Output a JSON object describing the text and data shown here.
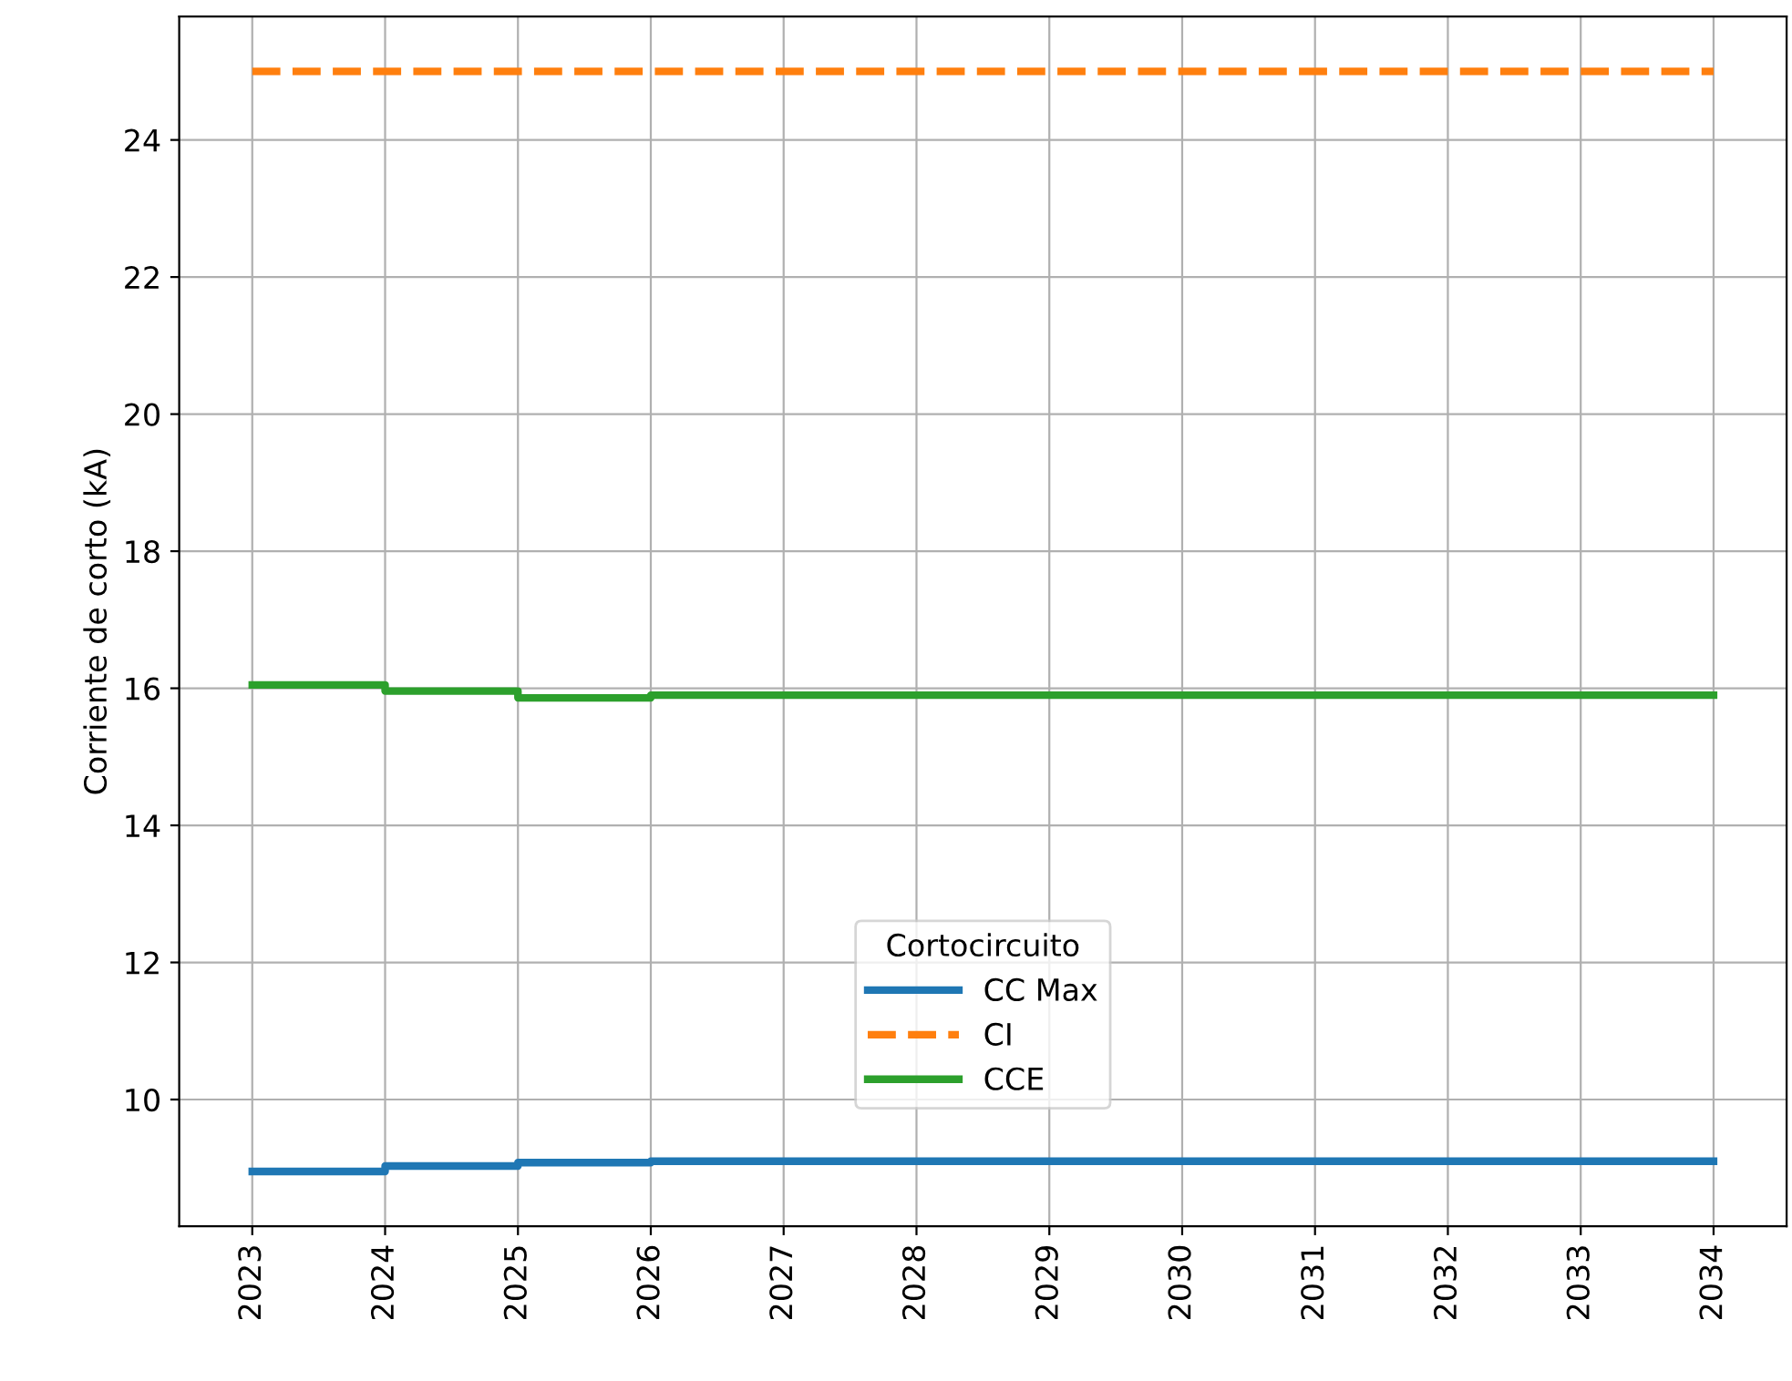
{
  "chart_data": {
    "type": "step",
    "ylabel": "Corriente de corto (kA)",
    "legend_title": "Cortocircuito",
    "legend": "bottom",
    "grid": true,
    "x": [
      2023,
      2024,
      2025,
      2026,
      2027,
      2028,
      2029,
      2030,
      2031,
      2032,
      2033,
      2034
    ],
    "xlim": [
      2022.45,
      2034.55
    ],
    "xticks": [
      2023,
      2024,
      2025,
      2026,
      2027,
      2028,
      2029,
      2030,
      2031,
      2032,
      2033,
      2034
    ],
    "ylim": [
      8.15,
      25.8
    ],
    "yticks": [
      10,
      12,
      14,
      16,
      18,
      20,
      22,
      24
    ],
    "series": [
      {
        "name": "CC Max",
        "color": "#1f77b4",
        "values": [
          8.95,
          9.03,
          9.08,
          9.1,
          9.1,
          9.1,
          9.1,
          9.1,
          9.1,
          9.1,
          9.1,
          9.1
        ]
      },
      {
        "name": "CI",
        "color": "#ff7f0e",
        "line_style": "dashed",
        "values": [
          25,
          25,
          25,
          25,
          25,
          25,
          25,
          25,
          25,
          25,
          25,
          25
        ]
      },
      {
        "name": "CCE",
        "color": "#2ca02c",
        "values": [
          16.05,
          15.96,
          15.86,
          15.9,
          15.9,
          15.9,
          15.9,
          15.9,
          15.9,
          15.9,
          15.9,
          15.9
        ]
      }
    ]
  }
}
